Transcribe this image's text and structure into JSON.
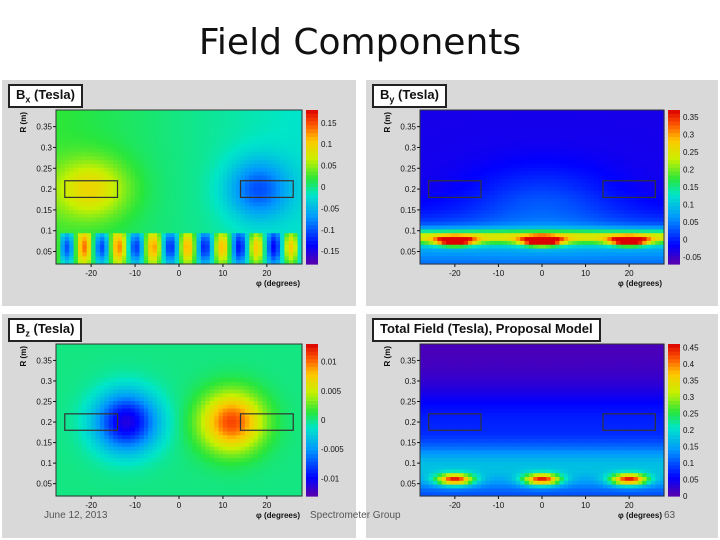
{
  "title": "Field Components",
  "footer": {
    "date": "June 12, 2013",
    "center": "Spectrometer Group",
    "page": "63"
  },
  "chart_data": [
    {
      "type": "heatmap",
      "title": "Bx (Tesla)",
      "title_main": "B",
      "title_sub": "x",
      "title_rest": " (Tesla)",
      "ylabel": "R (m)",
      "xlabel": "φ (degrees)",
      "x_ticks": [
        "-20",
        "-10",
        "0",
        "10",
        "20"
      ],
      "y_ticks": [
        "0.35",
        "0.3",
        "0.25",
        "0.2",
        "0.15",
        "0.1",
        "0.05"
      ],
      "colorbar_ticks": [
        "0.15",
        "0.1",
        "0.05",
        "0",
        "-0.05",
        "-0.1",
        "-0.15"
      ],
      "xlim": [
        -28,
        28
      ],
      "ylim": [
        0.02,
        0.39
      ],
      "zlim": [
        -0.18,
        0.18
      ]
    },
    {
      "type": "heatmap",
      "title": "By (Tesla)",
      "title_main": "B",
      "title_sub": "y",
      "title_rest": " (Tesla)",
      "ylabel": "R (m)",
      "xlabel": "φ (degrees)",
      "x_ticks": [
        "-20",
        "-10",
        "0",
        "10",
        "20"
      ],
      "y_ticks": [
        "0.35",
        "0.3",
        "0.25",
        "0.2",
        "0.15",
        "0.1",
        "0.05"
      ],
      "colorbar_ticks": [
        "0.35",
        "0.3",
        "0.25",
        "0.2",
        "0.15",
        "0.1",
        "0.05",
        "0",
        "-0.05"
      ],
      "xlim": [
        -28,
        28
      ],
      "ylim": [
        0.02,
        0.39
      ],
      "zlim": [
        -0.07,
        0.37
      ]
    },
    {
      "type": "heatmap",
      "title": "Bz (Tesla)",
      "title_main": "B",
      "title_sub": "z",
      "title_rest": " (Tesla)",
      "ylabel": "R (m)",
      "xlabel": "φ (degrees)",
      "x_ticks": [
        "-20",
        "-10",
        "0",
        "10",
        "20"
      ],
      "y_ticks": [
        "0.35",
        "0.3",
        "0.25",
        "0.2",
        "0.15",
        "0.1",
        "0.05"
      ],
      "colorbar_ticks": [
        "0.01",
        "0.005",
        "0",
        "-0.005",
        "-0.01"
      ],
      "xlim": [
        -28,
        28
      ],
      "ylim": [
        0.02,
        0.39
      ],
      "zlim": [
        -0.013,
        0.013
      ]
    },
    {
      "type": "heatmap",
      "title": "Total Field (Tesla), Proposal Model",
      "title_main": "Total Field (Tesla), Proposal Model",
      "title_sub": "",
      "title_rest": "",
      "ylabel": "R (m)",
      "xlabel": "φ (degrees)",
      "x_ticks": [
        "-20",
        "-10",
        "0",
        "10",
        "20"
      ],
      "y_ticks": [
        "0.35",
        "0.3",
        "0.25",
        "0.2",
        "0.15",
        "0.1",
        "0.05"
      ],
      "colorbar_ticks": [
        "0.45",
        "0.4",
        "0.35",
        "0.3",
        "0.25",
        "0.2",
        "0.15",
        "0.1",
        "0.05",
        "0"
      ],
      "xlim": [
        -28,
        28
      ],
      "ylim": [
        0.02,
        0.39
      ],
      "zlim": [
        0,
        0.46
      ]
    }
  ]
}
